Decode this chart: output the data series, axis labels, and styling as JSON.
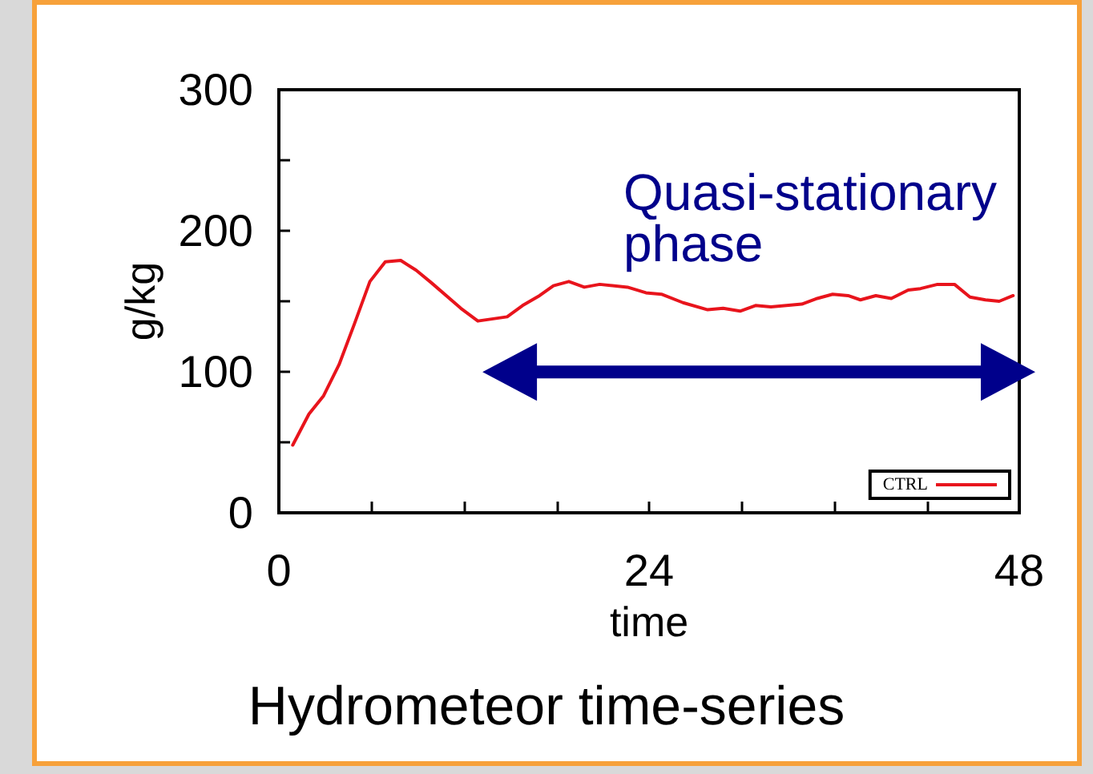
{
  "chart_data": {
    "type": "line",
    "title": "Hydrometeor time-series",
    "xlabel": "time",
    "ylabel": "g/kg",
    "annotations": [
      "Quasi-stationary phase"
    ],
    "series": [
      {
        "name": "CTRL",
        "color": "#e8141c",
        "x": [
          0.9,
          1.95,
          2.9,
          3.9,
          4.9,
          5.9,
          6.9,
          7.9,
          8.9,
          9.9,
          11.8,
          12.9,
          14.8,
          15.8,
          16.9,
          17.8,
          18.8,
          19.8,
          20.8,
          22.6,
          23.8,
          24.8,
          26.2,
          27.8,
          28.8,
          29.9,
          30.9,
          31.9,
          33.9,
          34.9,
          35.9,
          36.9,
          37.7,
          38.7,
          39.7,
          40.8,
          41.6,
          42.7,
          43.8,
          44.8,
          45.8,
          46.7,
          47.6
        ],
        "values": [
          48,
          70,
          83,
          105,
          134,
          164,
          178,
          179,
          172,
          163,
          145,
          136,
          139,
          147,
          154,
          161,
          164,
          160,
          162,
          160,
          156,
          155,
          149,
          144,
          145,
          143,
          147,
          146,
          148,
          152,
          155,
          154,
          151,
          154,
          152,
          158,
          159,
          162,
          162,
          153,
          151,
          150,
          154
        ]
      }
    ],
    "xlim": [
      0,
      48
    ],
    "xticks": [
      0,
      {
        "value": 6,
        "label": null
      },
      {
        "value": 12,
        "label": null
      },
      {
        "value": 18,
        "label": null
      },
      24,
      {
        "value": 30,
        "label": null
      },
      {
        "value": 36,
        "label": null
      },
      {
        "value": 42,
        "label": null
      },
      48
    ],
    "ylim": [
      0,
      300
    ],
    "yticks": [
      0,
      {
        "value": 50,
        "label": null
      },
      100,
      {
        "value": 150,
        "label": null
      },
      200,
      {
        "value": 250,
        "label": null
      },
      300
    ],
    "grid": false,
    "legend": "bottom right",
    "marker": "none",
    "line_style": "solid"
  }
}
